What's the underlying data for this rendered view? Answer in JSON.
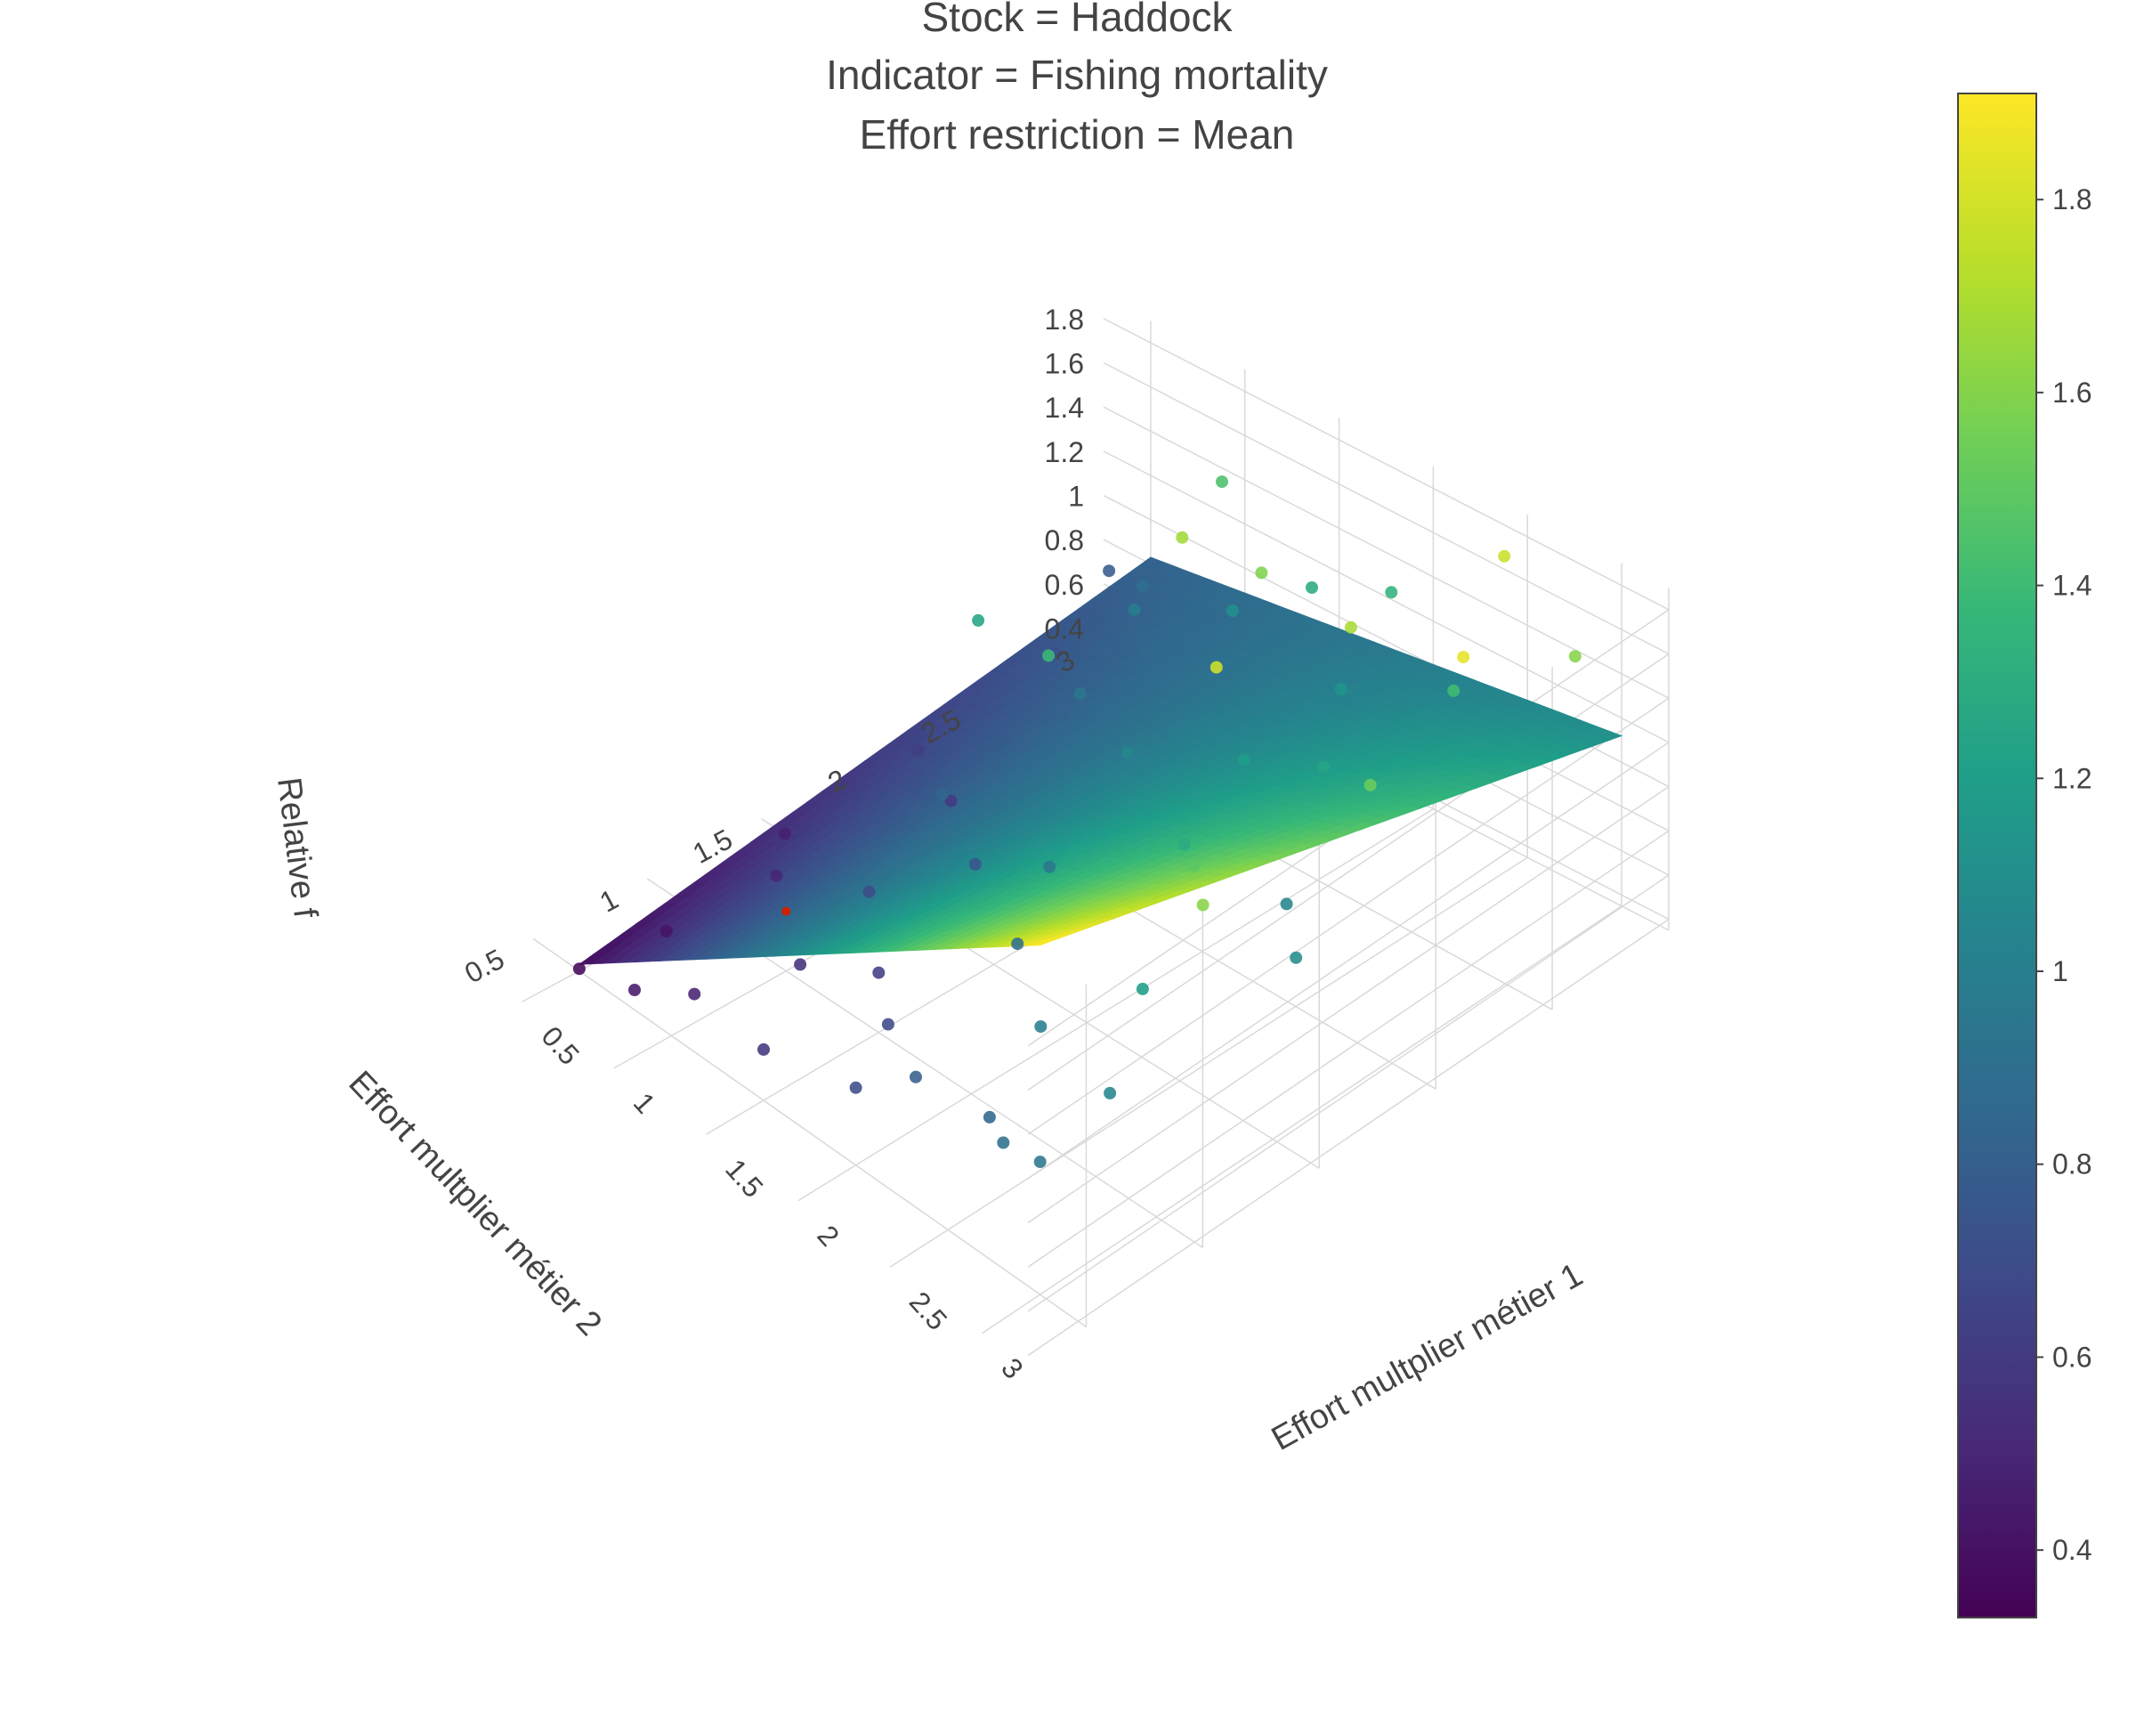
{
  "chart_data": {
    "type": "surface3d",
    "title": [
      "Stock = Haddock",
      "Indicator = Fishing mortality",
      "Effort restriction = Mean"
    ],
    "xlabel": "Effort multplier métier 1",
    "ylabel": "Effort multplier métier 2",
    "zlabel": "Relative f",
    "xlim": [
      0.25,
      3.25
    ],
    "ylim": [
      0.25,
      3.0
    ],
    "zlim": [
      0.35,
      1.9
    ],
    "x_ticks": [
      "0.5",
      "1",
      "1.5",
      "2",
      "2.5",
      "3"
    ],
    "y_ticks": [
      "0.5",
      "1",
      "1.5",
      "2",
      "2.5",
      "3"
    ],
    "z_ticks": [
      "0.4",
      "0.6",
      "0.8",
      "1",
      "1.2",
      "1.4",
      "1.6",
      "1.8"
    ],
    "colorscale": "Viridis",
    "colorbar_range": [
      0.33,
      1.91
    ],
    "colorbar_ticks": [
      "0.4",
      "0.6",
      "0.8",
      "1",
      "1.2",
      "1.4",
      "1.6",
      "1.8"
    ],
    "surface": {
      "x": [
        0.5,
        3.0
      ],
      "y": [
        0.5,
        3.0
      ],
      "z": [
        [
          0.38,
          1.93
        ],
        [
          0.83,
          1.12
        ]
      ],
      "z_note": "z[i][j] where i indexes y, j indexes x (bilinear corners)"
    },
    "points": [
      {
        "x": 0.5,
        "y": 0.5,
        "z": 0.36
      },
      {
        "x": 0.6,
        "y": 0.8,
        "z": 0.42
      },
      {
        "x": 0.8,
        "y": 0.5,
        "z": 0.44
      },
      {
        "x": 1.0,
        "y": 0.6,
        "z": 0.48
      },
      {
        "x": 0.7,
        "y": 1.2,
        "z": 0.5
      },
      {
        "x": 0.5,
        "y": 1.4,
        "z": 0.47
      },
      {
        "x": 1.2,
        "y": 0.9,
        "z": 0.55
      },
      {
        "x": 0.9,
        "y": 1.8,
        "z": 0.6
      },
      {
        "x": 1.5,
        "y": 0.5,
        "z": 0.58
      },
      {
        "x": 1.4,
        "y": 1.5,
        "z": 0.75
      },
      {
        "x": 0.6,
        "y": 2.5,
        "z": 0.72
      },
      {
        "x": 0.4,
        "y": 2.9,
        "z": 0.78
      },
      {
        "x": 1.8,
        "y": 0.8,
        "z": 0.68
      },
      {
        "x": 2.0,
        "y": 1.2,
        "z": 0.9
      },
      {
        "x": 2.2,
        "y": 0.6,
        "z": 0.8
      },
      {
        "x": 2.5,
        "y": 0.9,
        "z": 1.0
      },
      {
        "x": 2.8,
        "y": 0.5,
        "z": 0.92
      },
      {
        "x": 3.0,
        "y": 0.8,
        "z": 1.05
      },
      {
        "x": 1.1,
        "y": 2.2,
        "z": 0.95
      },
      {
        "x": 1.6,
        "y": 2.0,
        "z": 1.05
      },
      {
        "x": 1.3,
        "y": 2.7,
        "z": 1.12
      },
      {
        "x": 2.1,
        "y": 2.1,
        "z": 1.2
      },
      {
        "x": 2.4,
        "y": 1.6,
        "z": 1.3
      },
      {
        "x": 2.7,
        "y": 1.4,
        "z": 1.5
      },
      {
        "x": 3.0,
        "y": 1.2,
        "z": 1.62
      },
      {
        "x": 2.9,
        "y": 2.0,
        "z": 1.55
      },
      {
        "x": 2.6,
        "y": 2.6,
        "z": 1.42
      },
      {
        "x": 3.0,
        "y": 2.8,
        "z": 1.62
      },
      {
        "x": 1.9,
        "y": 2.9,
        "z": 1.35
      },
      {
        "x": 2.3,
        "y": 2.4,
        "z": 1.7
      },
      {
        "x": 1.7,
        "y": 2.5,
        "z": 1.6
      },
      {
        "x": 1.2,
        "y": 1.2,
        "z": 0.7
      },
      {
        "x": 1.0,
        "y": 2.9,
        "z": 1.45
      },
      {
        "x": 0.8,
        "y": 2.0,
        "z": 1.25
      },
      {
        "x": 1.5,
        "y": 1.0,
        "z": 0.62
      },
      {
        "x": 2.0,
        "y": 0.5,
        "z": 0.7
      },
      {
        "x": 2.6,
        "y": 0.6,
        "z": 0.85
      },
      {
        "x": 3.0,
        "y": 0.5,
        "z": 0.95
      },
      {
        "x": 2.8,
        "y": 1.1,
        "z": 1.2
      },
      {
        "x": 2.2,
        "y": 1.9,
        "z": 1.8
      },
      {
        "x": 2.9,
        "y": 2.4,
        "z": 1.85
      },
      {
        "x": 2.5,
        "y": 2.9,
        "z": 1.78
      },
      {
        "x": 1.4,
        "y": 2.4,
        "z": 1.68
      },
      {
        "x": 0.9,
        "y": 2.6,
        "z": 1.0
      },
      {
        "x": 1.8,
        "y": 1.5,
        "z": 0.95
      },
      {
        "x": 1.1,
        "y": 1.6,
        "z": 0.85
      },
      {
        "x": 0.6,
        "y": 1.9,
        "z": 0.62
      },
      {
        "x": 2.0,
        "y": 2.6,
        "z": 1.15
      },
      {
        "x": 2.4,
        "y": 2.2,
        "z": 1.25
      },
      {
        "x": 1.6,
        "y": 2.8,
        "z": 1.3
      },
      {
        "x": 2.7,
        "y": 1.8,
        "z": 1.05
      },
      {
        "x": 3.0,
        "y": 1.6,
        "z": 1.1
      },
      {
        "x": 1.3,
        "y": 1.9,
        "z": 1.4
      },
      {
        "x": 0.7,
        "y": 2.8,
        "z": 0.9
      }
    ],
    "highlight_point": {
      "x": 1.0,
      "y": 1.0,
      "z": 0.62,
      "color": "#cc2200"
    }
  }
}
